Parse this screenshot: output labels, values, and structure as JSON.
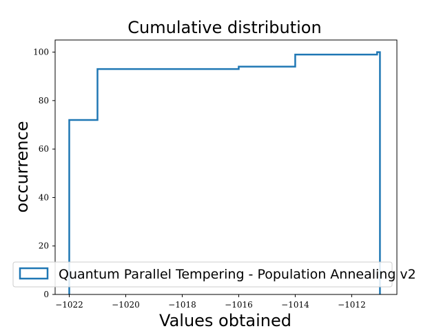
{
  "chart_data": {
    "type": "line",
    "title": "Cumulative distribution",
    "xlabel": "Values obtained",
    "ylabel": "occurrence",
    "xlim": [
      -1022.5,
      -1010.4
    ],
    "ylim": [
      0,
      105
    ],
    "xticks": [
      -1022,
      -1020,
      -1018,
      -1016,
      -1014,
      -1012
    ],
    "xtick_labels": [
      "−1022",
      "−1020",
      "−1018",
      "−1016",
      "−1014",
      "−1012"
    ],
    "yticks": [
      0,
      20,
      40,
      60,
      80,
      100
    ],
    "ytick_labels": [
      "0",
      "20",
      "40",
      "60",
      "80",
      "100"
    ],
    "grid": false,
    "legend_position": "lower-left",
    "series": [
      {
        "name": "Quantum Parallel Tempering - Population Annealing v2",
        "color": "#1f77b4",
        "style": "step-histogram",
        "x": [
          -1022,
          -1021,
          -1016,
          -1014,
          -1011.1,
          -1011
        ],
        "y": [
          72,
          93,
          94,
          99,
          100,
          100
        ]
      }
    ]
  }
}
